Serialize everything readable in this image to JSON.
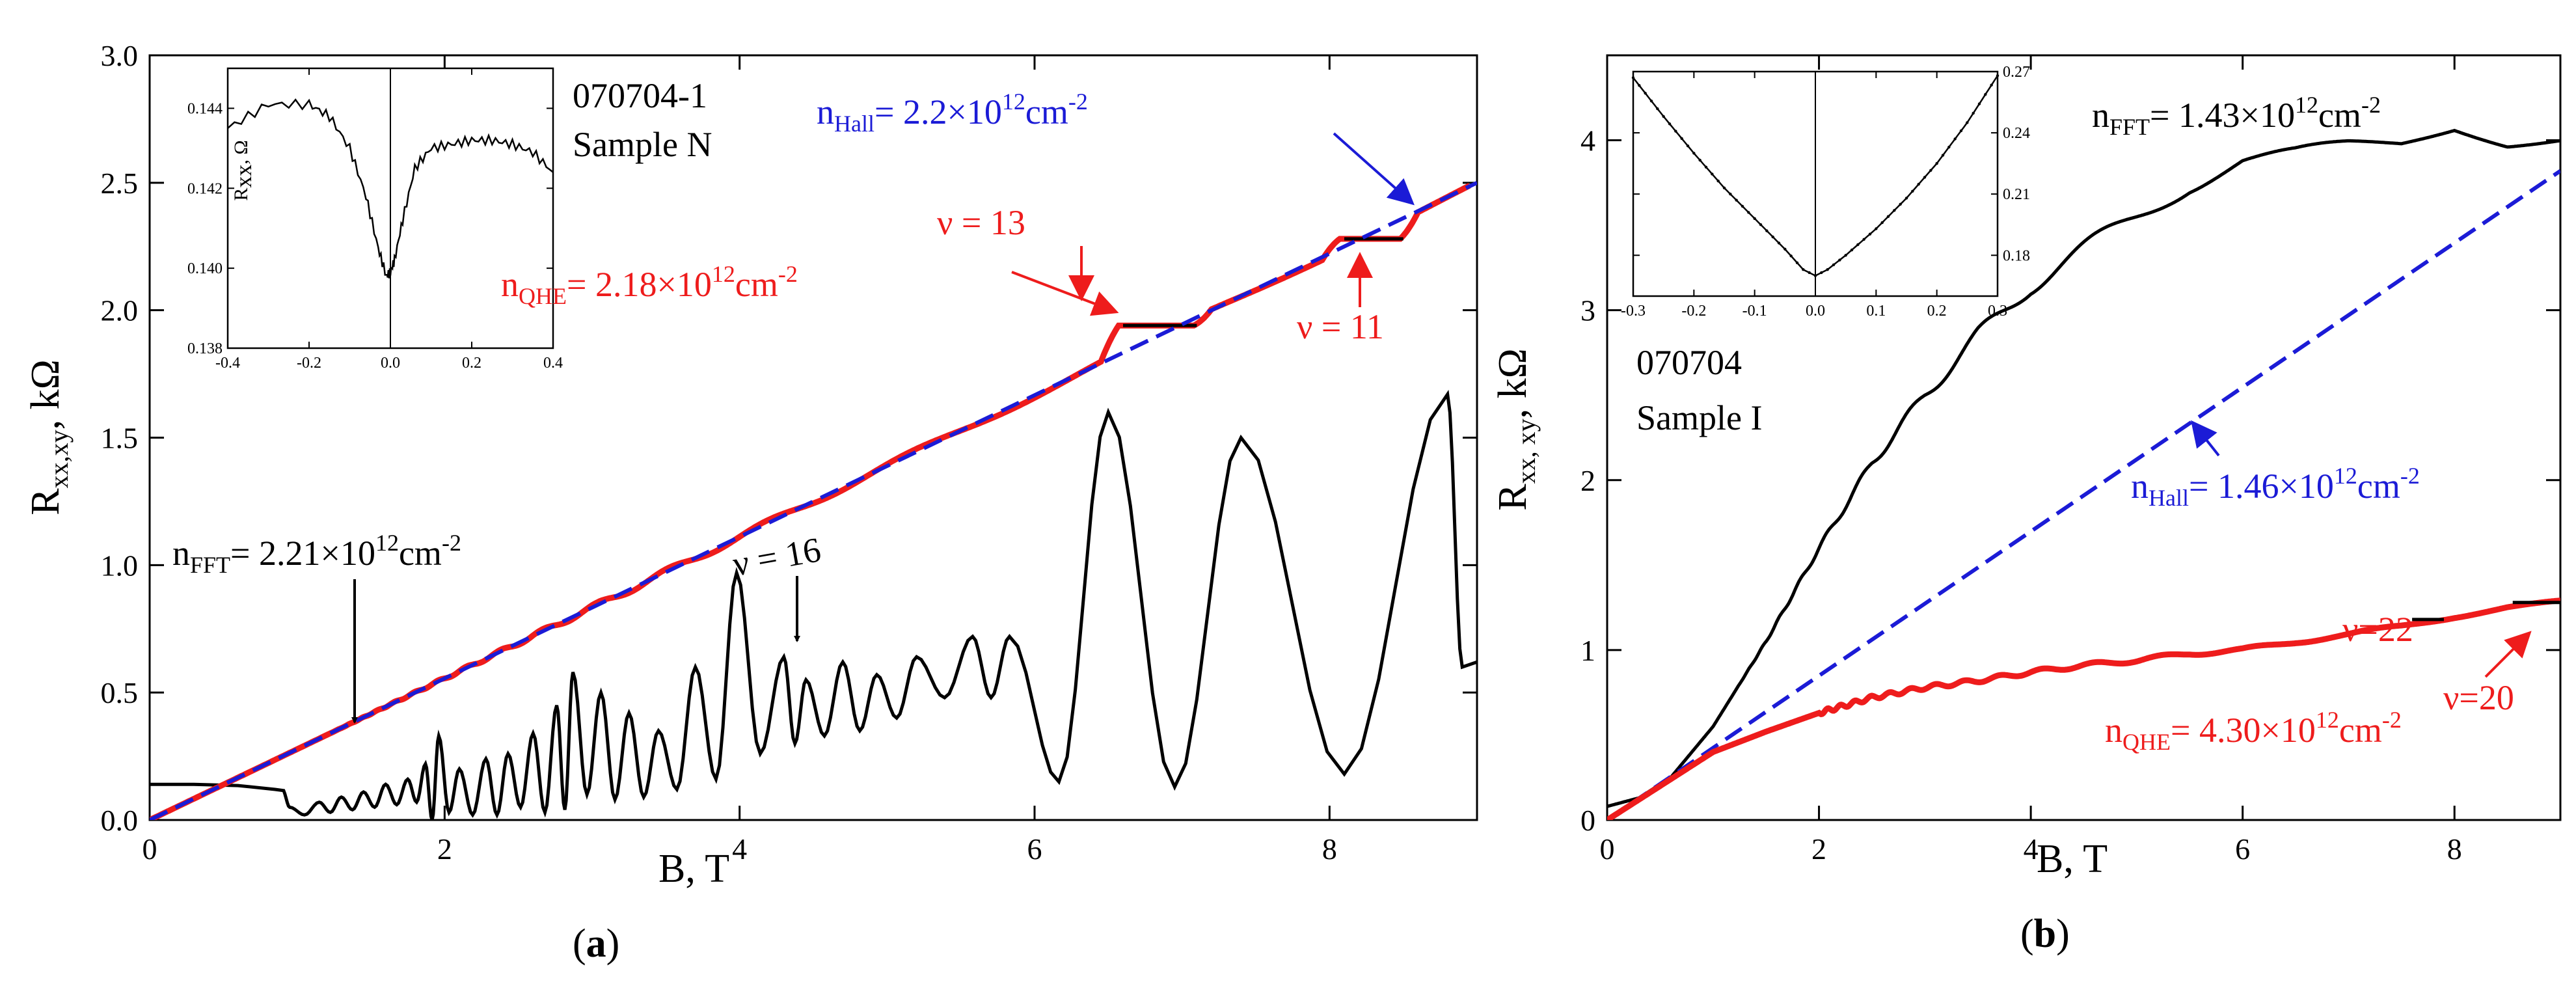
{
  "chart_data": [
    {
      "id": "a",
      "type": "line",
      "panel_label": "a",
      "xlabel": "B, T",
      "ylabel": "R",
      "ylabel_sub": "xx,xy",
      "ylabel_unit": ", kΩ",
      "xlim": [
        0,
        9
      ],
      "ylim": [
        0,
        3.0
      ],
      "xticks": [
        0,
        2,
        4,
        6,
        8
      ],
      "xtick_labels": [
        "0",
        "2",
        "4",
        "6",
        "8"
      ],
      "yticks": [
        0,
        0.5,
        1.0,
        1.5,
        2.0,
        2.5,
        3.0
      ],
      "ytick_labels": [
        "0.0",
        "0.5",
        "1.0",
        "1.5",
        "2.0",
        "2.5",
        "3.0"
      ],
      "labels": {
        "sample_id": "070704-1",
        "sample_name": "Sample N",
        "n_hall_prefix": "n",
        "n_hall_sub": "Hall",
        "n_hall_value": "= 2.2×10",
        "n_hall_exp": "12",
        "n_hall_unit": "cm",
        "n_hall_unit_exp": "-2",
        "n_qhe_prefix": "n",
        "n_qhe_sub": "QHE",
        "n_qhe_value": "= 2.18×10",
        "n_qhe_exp": "12",
        "n_qhe_unit": "cm",
        "n_qhe_unit_exp": "-2",
        "n_fft_prefix": "n",
        "n_fft_sub": "FFT",
        "n_fft_value": "= 2.21×10",
        "n_fft_exp": "12",
        "n_fft_unit": "cm",
        "n_fft_unit_exp": "-2",
        "nu13": "ν = 13",
        "nu11": "ν = 11",
        "nu16": "ν = 16"
      },
      "series": [
        {
          "name": "R_xy (n_Hall fit)",
          "color": "#1b1bd6",
          "style": "dashed",
          "x": [
            0,
            9
          ],
          "y": [
            0,
            2.5
          ]
        },
        {
          "name": "R_xy measured",
          "color": "#ee1c1c",
          "style": "solid-steps",
          "x_range": [
            0,
            8.95
          ],
          "plateaus": [
            {
              "nu": 13,
              "x": [
                6.6,
                7.1
              ],
              "y": 1.94
            },
            {
              "nu": 11,
              "x": [
                8.1,
                8.5
              ],
              "y": 2.28
            }
          ]
        },
        {
          "name": "R_xx",
          "color": "#000000",
          "style": "solid",
          "peaks_x": [
            0.95,
            1.15,
            1.3,
            1.45,
            1.6,
            1.75,
            1.87,
            1.96,
            2.1,
            2.28,
            2.43,
            2.6,
            2.76,
            2.87,
            3.06,
            3.25,
            3.45,
            3.7,
            3.98,
            4.3,
            4.45,
            4.7,
            4.93,
            5.2,
            5.58,
            5.83,
            6.5,
            7.4,
            8.8
          ],
          "peaks_y": [
            0.05,
            0.07,
            0.09,
            0.11,
            0.14,
            0.16,
            0.22,
            0.33,
            0.2,
            0.24,
            0.26,
            0.34,
            0.45,
            0.58,
            0.5,
            0.42,
            0.35,
            0.6,
            0.97,
            0.64,
            0.55,
            0.62,
            0.57,
            0.64,
            0.72,
            0.72,
            1.6,
            1.5,
            1.67
          ],
          "valleys_y": [
            0.02,
            0.03,
            0.04,
            0.05,
            0.06,
            0.07,
            0.0,
            0.03,
            0.02,
            0.02,
            0.05,
            0.03,
            0.04,
            0.1,
            0.08,
            0.09,
            0.12,
            0.16,
            0.26,
            0.3,
            0.33,
            0.35,
            0.4,
            0.48,
            0.48,
            0.15,
            0.13,
            0.18
          ],
          "low_field_value": 0.14
        }
      ],
      "inset": {
        "xlim": [
          -0.4,
          0.4
        ],
        "ylim": [
          0.138,
          0.145
        ],
        "xticks": [
          -0.4,
          -0.2,
          0.0,
          0.2,
          0.4
        ],
        "xtick_labels": [
          "-0.4",
          "-0.2",
          "0.0",
          "0.2",
          "0.4"
        ],
        "yticks": [
          0.138,
          0.14,
          0.142,
          0.144
        ],
        "ytick_labels": [
          "0.138",
          "0.140",
          "0.142",
          "0.144"
        ],
        "ylabel": "R",
        "ylabel_sub": "xx",
        "ylabel_unit": ", Ω",
        "points_x": [
          -0.4,
          -0.3,
          -0.2,
          -0.15,
          -0.1,
          -0.06,
          -0.03,
          -0.01,
          0.0,
          0.01,
          0.03,
          0.06,
          0.1,
          0.15,
          0.2,
          0.25,
          0.3,
          0.35,
          0.4
        ],
        "points_y": [
          0.1435,
          0.1441,
          0.1441,
          0.1438,
          0.143,
          0.1418,
          0.1405,
          0.1398,
          0.1399,
          0.1402,
          0.1412,
          0.1425,
          0.143,
          0.1431,
          0.1432,
          0.1432,
          0.1431,
          0.1429,
          0.1424
        ]
      }
    },
    {
      "id": "b",
      "type": "line",
      "panel_label": "b",
      "xlabel": "B, T",
      "ylabel": "R",
      "ylabel_sub": "xx, xy",
      "ylabel_unit": ", kΩ",
      "xlim": [
        0,
        9
      ],
      "ylim": [
        0,
        4.5
      ],
      "xticks": [
        0,
        2,
        4,
        6,
        8
      ],
      "xtick_labels": [
        "0",
        "2",
        "4",
        "6",
        "8"
      ],
      "yticks": [
        0,
        1,
        2,
        3,
        4
      ],
      "ytick_labels": [
        "0",
        "1",
        "2",
        "3",
        "4"
      ],
      "labels": {
        "sample_id": "070704",
        "sample_name": "Sample I",
        "n_fft_prefix": "n",
        "n_fft_sub": "FFT",
        "n_fft_value": "= 1.43×10",
        "n_fft_exp": "12",
        "n_fft_unit": "cm",
        "n_fft_unit_exp": "-2",
        "n_hall_prefix": "n",
        "n_hall_sub": "Hall",
        "n_hall_value": "= 1.46×10",
        "n_hall_exp": "12",
        "n_hall_unit": "cm",
        "n_hall_unit_exp": "-2",
        "n_qhe_prefix": "n",
        "n_qhe_sub": "QHE",
        "n_qhe_value": "= 4.30×10",
        "n_qhe_exp": "12",
        "n_qhe_unit": "cm",
        "n_qhe_unit_exp": "-2",
        "nu22": "ν=22",
        "nu20": "ν=20"
      },
      "series": [
        {
          "name": "R_xx",
          "color": "#000000",
          "style": "solid",
          "x": [
            0,
            0.3,
            0.6,
            1.0,
            1.5,
            2.0,
            2.5,
            3.0,
            3.5,
            4.0,
            4.5,
            5.0,
            5.5,
            6.0,
            6.5,
            7.0,
            7.5,
            8.0,
            8.5,
            9.0
          ],
          "y": [
            0.08,
            0.13,
            0.25,
            0.55,
            1.05,
            1.6,
            2.1,
            2.5,
            2.85,
            3.15,
            3.35,
            3.55,
            3.75,
            3.88,
            3.9,
            3.95,
            3.98,
            4.1,
            4.02,
            4.05
          ]
        },
        {
          "name": "R_xy (n_Hall fit)",
          "color": "#1b1bd6",
          "style": "dashed",
          "x": [
            0,
            9
          ],
          "y": [
            0,
            3.82
          ]
        },
        {
          "name": "R_xy measured",
          "color": "#ee1c1c",
          "style": "solid",
          "x": [
            0,
            0.5,
            1.0,
            1.5,
            2.0,
            2.5,
            3.0,
            3.5,
            4.0,
            4.5,
            5.0,
            5.5,
            6.0,
            6.5,
            7.0,
            7.5,
            8.0,
            8.5,
            9.0
          ],
          "y": [
            0,
            0.2,
            0.4,
            0.52,
            0.63,
            0.72,
            0.78,
            0.82,
            0.87,
            0.91,
            0.94,
            0.98,
            1.0,
            1.05,
            1.09,
            1.14,
            1.2,
            1.25,
            1.28
          ],
          "plateaus": [
            {
              "nu": 22,
              "x": [
                7.6,
                7.9
              ],
              "y": 1.18
            },
            {
              "nu": 20,
              "x": [
                8.55,
                9.0
              ],
              "y": 1.28
            }
          ]
        }
      ],
      "inset": {
        "xlim": [
          -0.3,
          0.3
        ],
        "ylim": [
          0.16,
          0.27
        ],
        "xticks": [
          -0.3,
          -0.2,
          -0.1,
          0.0,
          0.1,
          0.2,
          0.3
        ],
        "xtick_labels": [
          "-0.3",
          "-0.2",
          "-0.1",
          "0.0",
          "0.1",
          "0.2",
          "0.3"
        ],
        "yticks": [
          0.18,
          0.21,
          0.24,
          0.27
        ],
        "ytick_labels": [
          "0.18",
          "0.21",
          "0.24",
          "0.27"
        ],
        "points_x": [
          -0.3,
          -0.25,
          -0.2,
          -0.15,
          -0.1,
          -0.05,
          -0.02,
          0.0,
          0.02,
          0.05,
          0.1,
          0.15,
          0.2,
          0.25,
          0.3
        ],
        "points_y": [
          0.267,
          0.248,
          0.23,
          0.213,
          0.198,
          0.183,
          0.173,
          0.17,
          0.173,
          0.18,
          0.193,
          0.208,
          0.225,
          0.245,
          0.268
        ]
      }
    }
  ]
}
